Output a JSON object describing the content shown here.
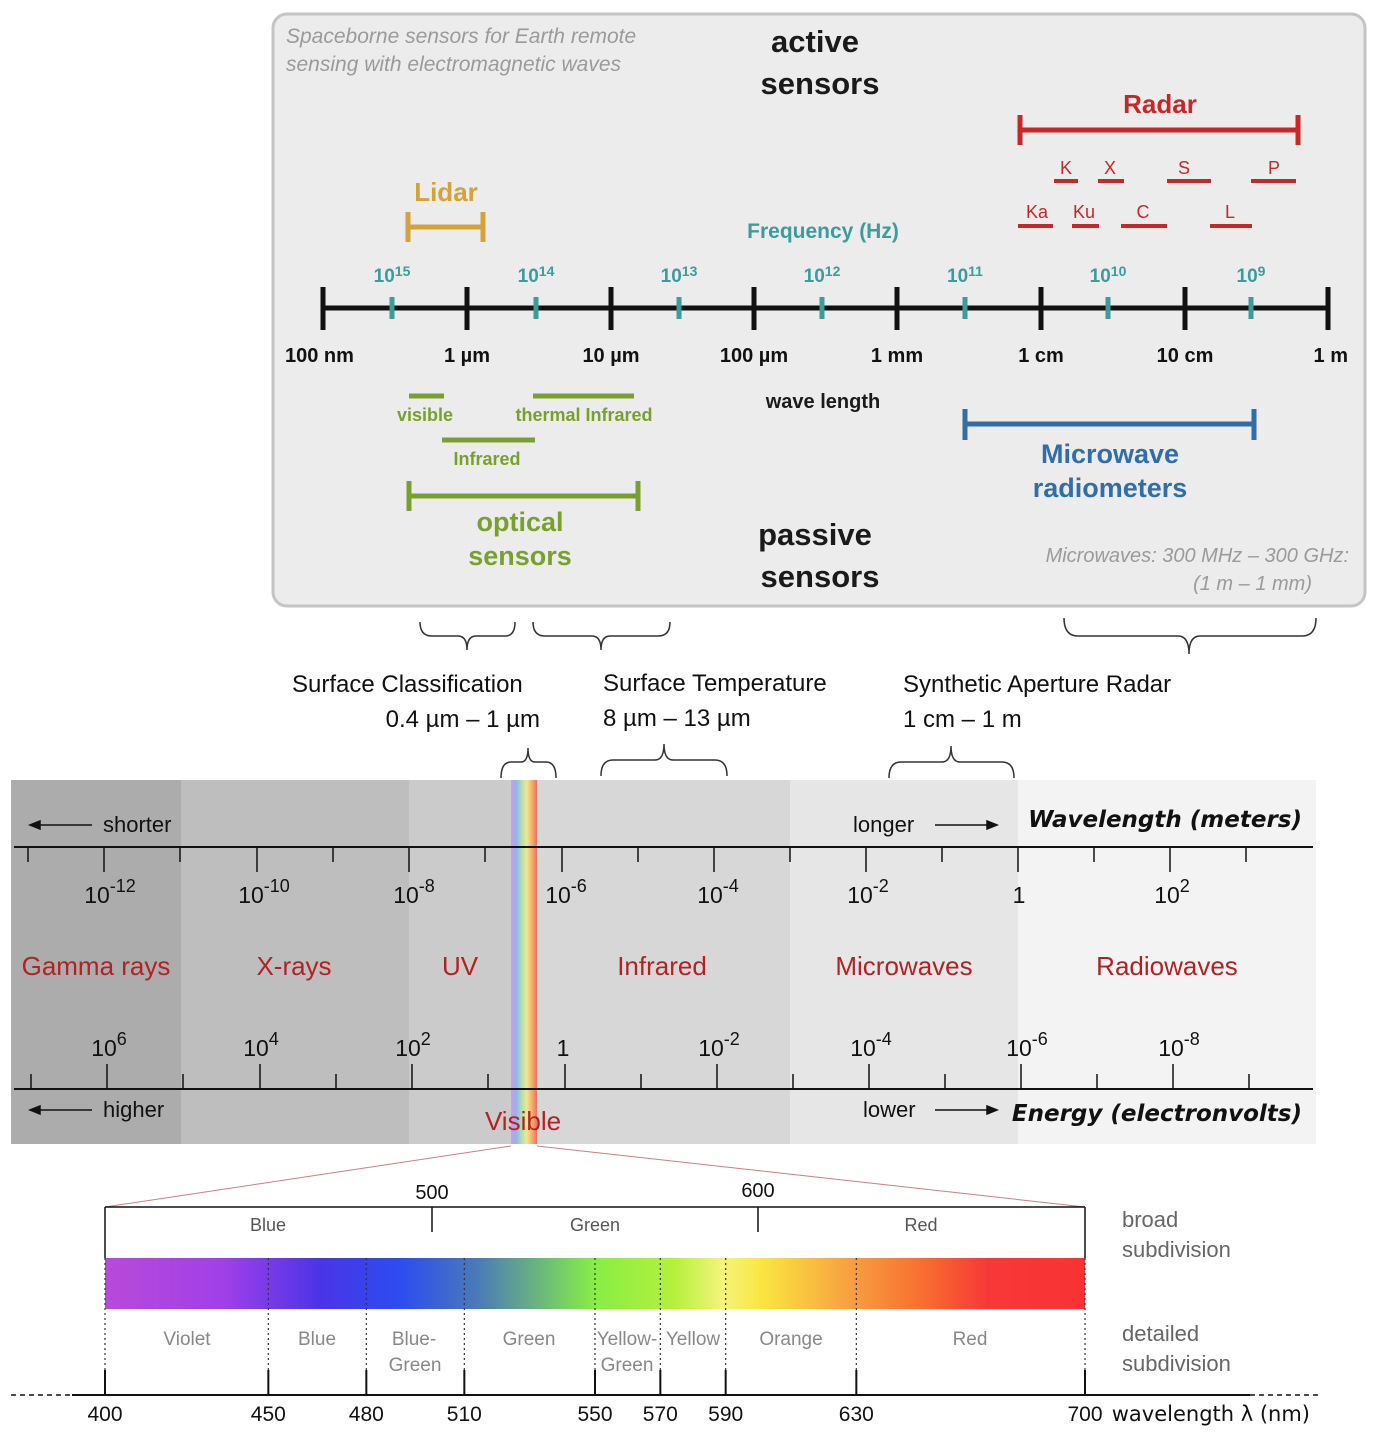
{
  "sensors_panel": {
    "caption_line1": "Spaceborne sensors for Earth remote",
    "caption_line2": "sensing with electromagnetic waves",
    "active_line1": "active",
    "active_line2": "sensors",
    "passive_line1": "passive",
    "passive_line2": "sensors",
    "radar": {
      "label": "Radar",
      "bands_top": [
        "K",
        "X",
        "S",
        "P"
      ],
      "bands_bottom": [
        "Ka",
        "Ku",
        "C",
        "L"
      ]
    },
    "lidar_label": "Lidar",
    "frequency_label": "Frequency (Hz)",
    "frequency_ticks": [
      {
        "base": "10",
        "exp": "15"
      },
      {
        "base": "10",
        "exp": "14"
      },
      {
        "base": "10",
        "exp": "13"
      },
      {
        "base": "10",
        "exp": "12"
      },
      {
        "base": "10",
        "exp": "11"
      },
      {
        "base": "10",
        "exp": "10"
      },
      {
        "base": "10",
        "exp": "9"
      }
    ],
    "wavelength_ticks": [
      "100 nm",
      "1 µm",
      "10 µm",
      "100 µm",
      "1 mm",
      "1 cm",
      "10 cm",
      "1 m"
    ],
    "wavelength_label": "wave length",
    "visible_label": "visible",
    "thermal_label": "thermal Infrared",
    "infrared_label": "Infrared",
    "optical_line1": "optical",
    "optical_line2": "sensors",
    "microwave_line1": "Microwave",
    "microwave_line2": "radiometers",
    "microwaves_note_line1": "Microwaves: 300 MHz – 300 GHz:",
    "microwaves_note_line2": "(1 m – 1 mm)",
    "colors": {
      "radar": "#c62828",
      "lidar": "#d4a23a",
      "frequency": "#3a9c9c",
      "optical": "#78a02e",
      "microwave": "#2f6ea8"
    }
  },
  "applications": [
    {
      "title": "Surface Classification",
      "range": "0.4 µm – 1 µm"
    },
    {
      "title": "Surface Temperature",
      "range": "8 µm – 13 µm"
    },
    {
      "title": "Synthetic Aperture Radar",
      "range": "1 cm – 1 m"
    }
  ],
  "em_spectrum": {
    "shorter": "shorter",
    "longer": "longer",
    "higher": "higher",
    "lower": "lower",
    "wavelength_axis": "Wavelength (meters)",
    "energy_axis": "Energy (electronvolts)",
    "wavelength_ticks": [
      {
        "base": "10",
        "exp": "-12"
      },
      {
        "base": "10",
        "exp": "-10"
      },
      {
        "base": "10",
        "exp": "-8"
      },
      {
        "base": "10",
        "exp": "-6"
      },
      {
        "base": "10",
        "exp": "-4"
      },
      {
        "base": "10",
        "exp": "-2"
      },
      {
        "base": "1",
        "exp": ""
      },
      {
        "base": "10",
        "exp": "2"
      }
    ],
    "energy_ticks": [
      {
        "base": "10",
        "exp": "6"
      },
      {
        "base": "10",
        "exp": "4"
      },
      {
        "base": "10",
        "exp": "2"
      },
      {
        "base": "1",
        "exp": ""
      },
      {
        "base": "10",
        "exp": "-2"
      },
      {
        "base": "10",
        "exp": "-4"
      },
      {
        "base": "10",
        "exp": "-6"
      },
      {
        "base": "10",
        "exp": "-8"
      }
    ],
    "bands": [
      "Gamma rays",
      "X-rays",
      "UV",
      "Infrared",
      "Microwaves",
      "Radiowaves"
    ],
    "visible_label": "Visible",
    "band_label_color": "#b22222"
  },
  "visible_detail": {
    "top_ticks": [
      "500",
      "600"
    ],
    "broad": [
      "Blue",
      "Green",
      "Red"
    ],
    "broad_label_line1": "broad",
    "broad_label_line2": "subdivision",
    "detailed": [
      "Violet",
      "Blue",
      "Blue-",
      "Green",
      "Green",
      "Yellow-",
      "Green",
      "Yellow",
      "Orange",
      "Red"
    ],
    "detailed_label_line1": "detailed",
    "detailed_label_line2": "subdivision",
    "nm_ticks": [
      "400",
      "450",
      "480",
      "510",
      "550",
      "570",
      "590",
      "630",
      "700"
    ],
    "axis_label": "wavelength λ (nm)"
  }
}
